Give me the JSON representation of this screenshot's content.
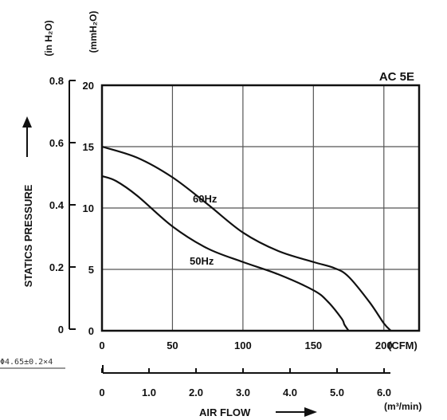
{
  "chart_data": {
    "type": "line",
    "title": "AC 5E",
    "x": {
      "label": "AIR FLOW",
      "primary_unit": "(CFM)",
      "primary_ticks": [
        "0",
        "50",
        "100",
        "150",
        "200"
      ],
      "primary_range": [
        0,
        225
      ],
      "secondary_unit": "(m³/min)",
      "secondary_ticks": [
        "0",
        "1.0",
        "2.0",
        "3.0",
        "4.0",
        "5.0",
        "6.0"
      ]
    },
    "y": {
      "label": "STATICS PRESSURE",
      "primary_unit": "(mmH₂O)",
      "primary_ticks": [
        "0",
        "5",
        "10",
        "15",
        "20"
      ],
      "primary_range": [
        0,
        20
      ],
      "secondary_unit": "(in H₂O)",
      "secondary_ticks": [
        "0",
        "0.2",
        "0.4",
        "0.6",
        "0.8"
      ]
    },
    "grid": true,
    "series": [
      {
        "name": "60Hz",
        "x": [
          0,
          25,
          50,
          75,
          100,
          125,
          150,
          165,
          175,
          190,
          200,
          205
        ],
        "y": [
          15,
          14.1,
          12.5,
          10.3,
          8.0,
          6.5,
          5.6,
          5.1,
          4.4,
          2.3,
          0.6,
          0
        ]
      },
      {
        "name": "50Hz",
        "x": [
          0,
          10,
          25,
          50,
          75,
          100,
          125,
          150,
          160,
          170,
          172,
          175
        ],
        "y": [
          12.6,
          12.2,
          11.0,
          8.5,
          6.7,
          5.6,
          4.6,
          3.3,
          2.4,
          1.0,
          0.5,
          0
        ]
      }
    ]
  },
  "margin_note": "Φ4.65±0.2×4"
}
